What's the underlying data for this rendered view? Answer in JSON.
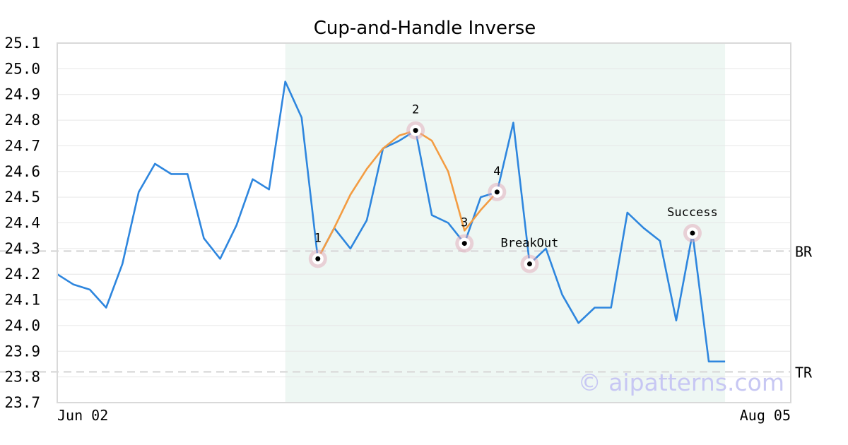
{
  "chart_data": {
    "type": "line",
    "title": "Cup-and-Handle Inverse",
    "xlabel": "",
    "ylabel": "",
    "ylim": [
      23.7,
      25.1
    ],
    "yticks": [
      "25.1",
      "25.0",
      "24.9",
      "24.8",
      "24.7",
      "24.6",
      "24.5",
      "24.4",
      "24.3",
      "24.2",
      "24.1",
      "24.0",
      "23.9",
      "23.8",
      "23.7"
    ],
    "xtick_labels": [
      "Jun 02",
      "Aug 05"
    ],
    "grid": "horizontal",
    "series": [
      {
        "color": "#2e86de",
        "values": [
          24.2,
          24.16,
          24.14,
          24.07,
          24.24,
          24.52,
          24.63,
          24.59,
          24.59,
          24.34,
          24.26,
          24.39,
          24.57,
          24.53,
          24.95,
          24.81,
          24.26,
          24.38,
          24.3,
          24.41,
          24.69,
          24.72,
          24.76,
          24.43,
          24.4,
          24.32,
          24.5,
          24.52,
          24.79,
          24.24,
          24.3,
          24.12,
          24.01,
          24.07,
          24.07,
          24.44,
          24.38,
          24.33,
          24.02,
          24.36,
          23.86,
          23.86
        ]
      },
      {
        "color": "#f39c42",
        "values": [
          null,
          null,
          null,
          null,
          null,
          null,
          null,
          null,
          null,
          null,
          null,
          null,
          null,
          null,
          null,
          null,
          24.26,
          24.38,
          24.51,
          24.61,
          24.69,
          24.74,
          24.76,
          24.72,
          24.6,
          24.37,
          24.45,
          24.52,
          null,
          null,
          null,
          null,
          null,
          null,
          null,
          null,
          null,
          null,
          null,
          null,
          null,
          null
        ]
      }
    ],
    "shaded_region": {
      "from_index": 14,
      "to_index": 41,
      "color": "#eef7f3"
    },
    "levels": [
      {
        "label": "BR",
        "value": 24.29
      },
      {
        "label": "TR",
        "value": 23.82
      }
    ],
    "annotations": [
      {
        "label": "1",
        "index": 16,
        "value": 24.26,
        "label_pos": "above"
      },
      {
        "label": "2",
        "index": 22,
        "value": 24.76,
        "label_pos": "above"
      },
      {
        "label": "3",
        "index": 25,
        "value": 24.32,
        "label_pos": "above"
      },
      {
        "label": "4",
        "index": 27,
        "value": 24.52,
        "label_pos": "above"
      },
      {
        "label": "BreakOut",
        "index": 29,
        "value": 24.24,
        "label_pos": "above"
      },
      {
        "label": "Success",
        "index": 39,
        "value": 24.36,
        "label_pos": "above"
      }
    ]
  },
  "watermark": "© aipatterns.com"
}
